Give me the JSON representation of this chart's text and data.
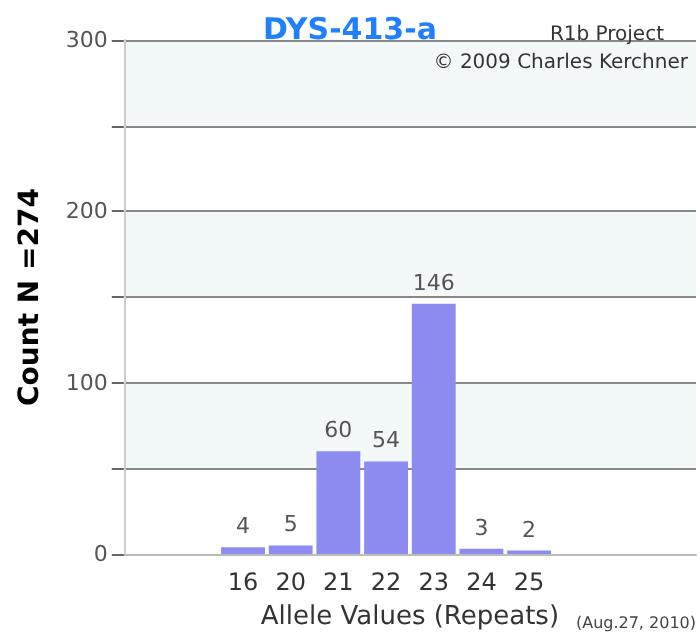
{
  "chart_data": {
    "type": "bar",
    "title": "DYS-413-a",
    "xlabel": "Allele Values (Repeats)",
    "ylabel": "Count N =274",
    "categories": [
      null,
      null,
      "16",
      "20",
      "21",
      "22",
      "23",
      "24",
      "25",
      null,
      null,
      null
    ],
    "values": [
      null,
      null,
      4,
      5,
      60,
      54,
      146,
      3,
      2,
      null,
      null,
      null
    ],
    "color": "#8c8cf0",
    "data_labels": true,
    "grid": "y",
    "ylim": [
      0,
      300
    ],
    "yticks": [
      0,
      {
        "value": 50,
        "label": null
      },
      100,
      {
        "value": 150,
        "label": null
      },
      200,
      {
        "value": 250,
        "label": null
      },
      300
    ],
    "annotations": [
      "R1b Project",
      "© 2009 Charles Kerchner",
      "(Aug.27, 2010)"
    ]
  }
}
